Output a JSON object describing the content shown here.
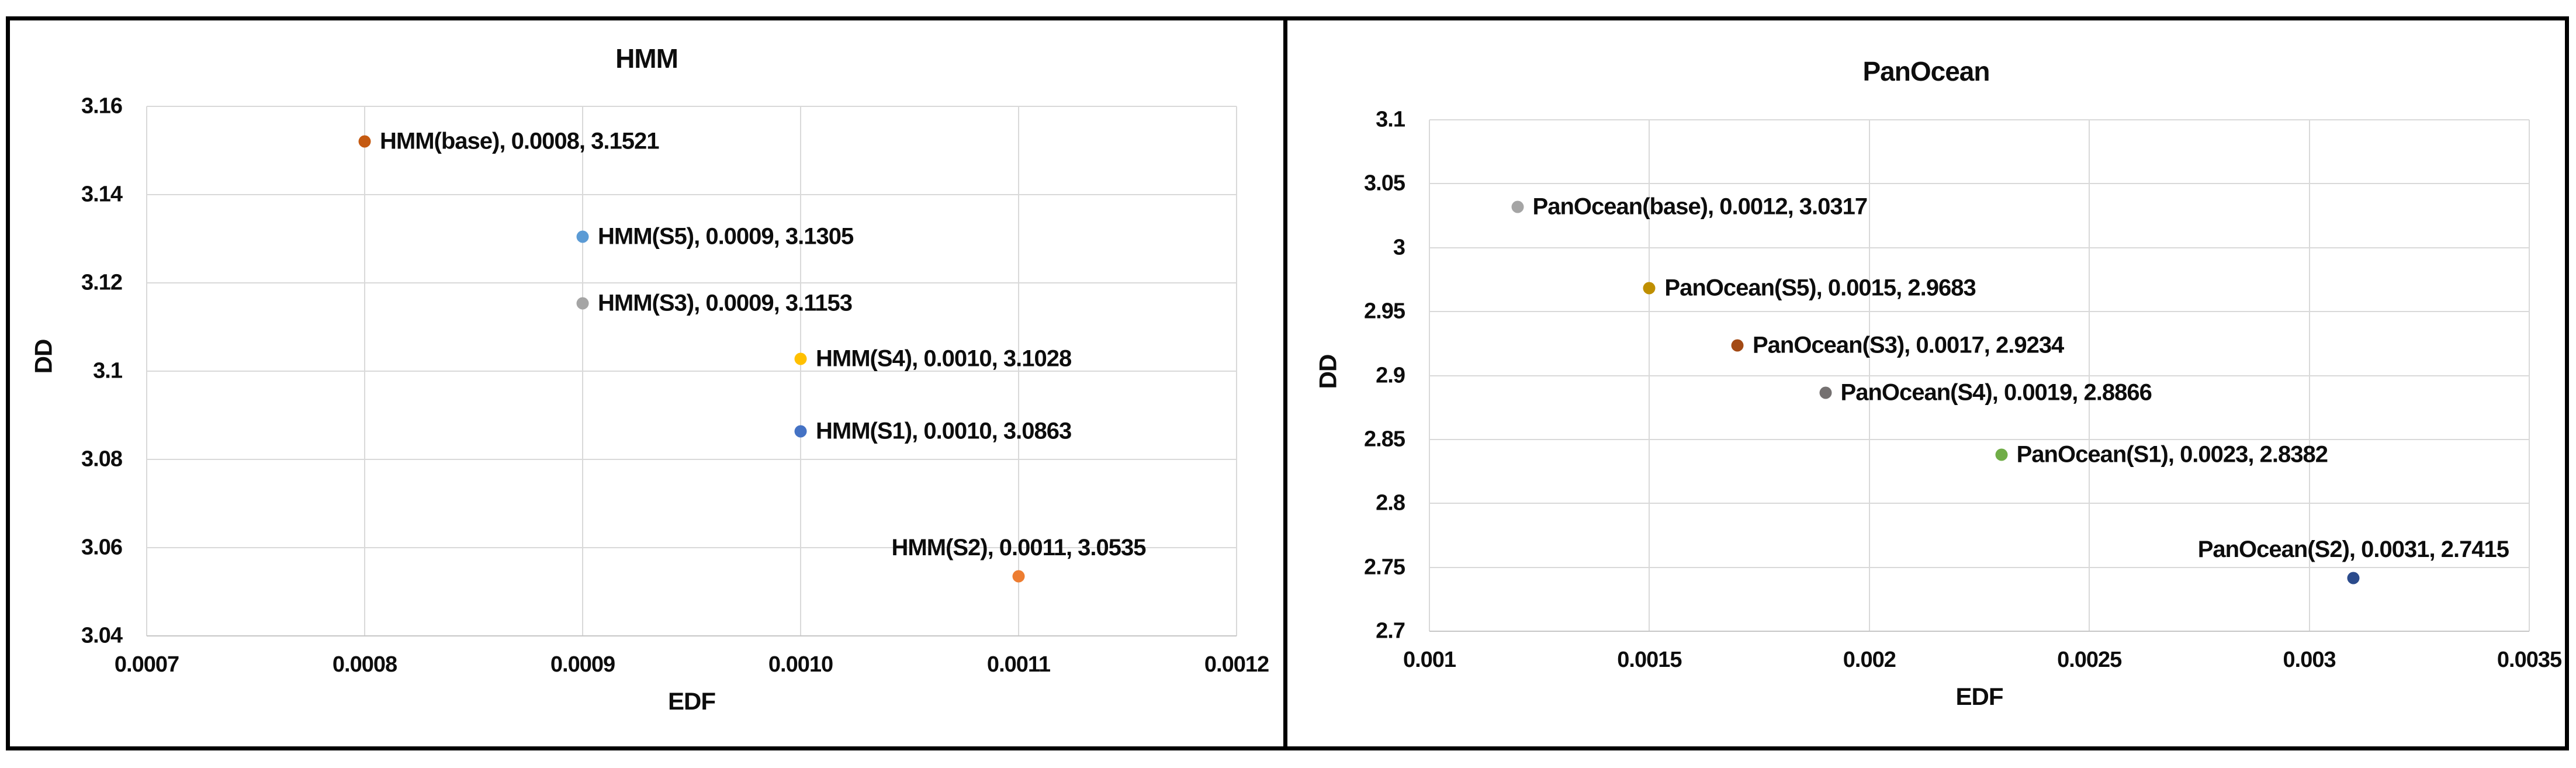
{
  "chart_data": [
    {
      "type": "scatter",
      "title": "HMM",
      "xlabel": "EDF",
      "ylabel": "DD",
      "xlim": [
        0.0007,
        0.0012
      ],
      "ylim": [
        3.04,
        3.16
      ],
      "x_ticks": [
        "0.0007",
        "0.0008",
        "0.0009",
        "0.0010",
        "0.0011",
        "0.0012"
      ],
      "y_ticks": [
        "3.16",
        "3.14",
        "3.12",
        "3.1",
        "3.08",
        "3.06",
        "3.04"
      ],
      "grid": true,
      "legend": "none",
      "points": [
        {
          "name": "HMM(base)",
          "x": 0.0008,
          "y": 3.1521,
          "label": "HMM(base), 0.0008, 3.1521",
          "color": "#C55A11",
          "label_pos": "right"
        },
        {
          "name": "HMM(S5)",
          "x": 0.0009,
          "y": 3.1305,
          "label": "HMM(S5), 0.0009, 3.1305",
          "color": "#5B9BD5",
          "label_pos": "right"
        },
        {
          "name": "HMM(S3)",
          "x": 0.0009,
          "y": 3.1153,
          "label": "HMM(S3), 0.0009, 3.1153",
          "color": "#A5A5A5",
          "label_pos": "right"
        },
        {
          "name": "HMM(S4)",
          "x": 0.001,
          "y": 3.1028,
          "label": "HMM(S4), 0.0010, 3.1028",
          "color": "#FFC000",
          "label_pos": "right"
        },
        {
          "name": "HMM(S1)",
          "x": 0.001,
          "y": 3.0863,
          "label": "HMM(S1), 0.0010, 3.0863",
          "color": "#4472C4",
          "label_pos": "right"
        },
        {
          "name": "HMM(S2)",
          "x": 0.0011,
          "y": 3.0535,
          "label": "HMM(S2), 0.0011, 3.0535",
          "color": "#ED7D31",
          "label_pos": "above"
        }
      ]
    },
    {
      "type": "scatter",
      "title": "PanOcean",
      "xlabel": "EDF",
      "ylabel": "DD",
      "xlim": [
        0.001,
        0.0035
      ],
      "ylim": [
        2.7,
        3.1
      ],
      "x_ticks": [
        "0.001",
        "0.0015",
        "0.002",
        "0.0025",
        "0.003",
        "0.0035"
      ],
      "y_ticks": [
        "3.1",
        "3.05",
        "3",
        "2.95",
        "2.9",
        "2.85",
        "2.8",
        "2.75",
        "2.7"
      ],
      "grid": true,
      "legend": "none",
      "points": [
        {
          "name": "PanOcean(base)",
          "x": 0.0012,
          "y": 3.0317,
          "label": "PanOcean(base), 0.0012, 3.0317",
          "color": "#A5A5A5",
          "label_pos": "right"
        },
        {
          "name": "PanOcean(S5)",
          "x": 0.0015,
          "y": 2.9683,
          "label": "PanOcean(S5), 0.0015, 2.9683",
          "color": "#BF8F00",
          "label_pos": "right"
        },
        {
          "name": "PanOcean(S3)",
          "x": 0.0017,
          "y": 2.9234,
          "label": "PanOcean(S3), 0.0017, 2.9234",
          "color": "#A34A15",
          "label_pos": "right"
        },
        {
          "name": "PanOcean(S4)",
          "x": 0.0019,
          "y": 2.8866,
          "label": "PanOcean(S4), 0.0019, 2.8866",
          "color": "#757171",
          "label_pos": "right"
        },
        {
          "name": "PanOcean(S1)",
          "x": 0.0023,
          "y": 2.8382,
          "label": "PanOcean(S1), 0.0023, 2.8382",
          "color": "#70AD47",
          "label_pos": "right"
        },
        {
          "name": "PanOcean(S2)",
          "x": 0.0031,
          "y": 2.7415,
          "label": "PanOcean(S2), 0.0031, 2.7415",
          "color": "#2B4B8C",
          "label_pos": "above"
        }
      ]
    }
  ]
}
